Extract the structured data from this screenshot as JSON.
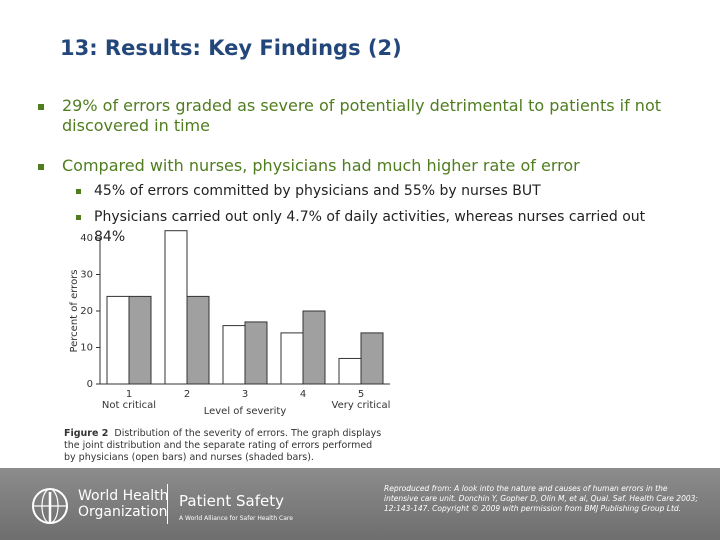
{
  "title": "13: Results: Key Findings (2)",
  "bullets": [
    "29% of errors graded as severe of potentially detrimental to patients if not discovered in time",
    "Compared with nurses, physicians had much higher rate of error"
  ],
  "sub_bullets": [
    "45% of errors committed by physicians and 55% by nurses BUT",
    "Physicians carried out only 4.7% of daily activities, whereas nurses carried out 84%"
  ],
  "figure": {
    "type": "bar",
    "categories": [
      "1",
      "2",
      "3",
      "4",
      "5"
    ],
    "x_end_labels": [
      "Not critical",
      "Very critical"
    ],
    "xlabel": "Level of severity",
    "ylabel": "Percent of errors",
    "ylim": [
      0,
      40
    ],
    "yticks": [
      0,
      10,
      20,
      30,
      40
    ],
    "series": [
      {
        "color": "#ffffff",
        "values": [
          24,
          42,
          16,
          14,
          7
        ]
      },
      {
        "color": "#a0a0a0",
        "values": [
          24,
          24,
          17,
          20,
          14
        ]
      }
    ],
    "caption_label": "Figure 2",
    "caption": "Distribution of the severity of errors. The graph displays the joint distribution and the separate rating of errors performed by physicians (open bars) and nurses (shaded bars)."
  },
  "footer": {
    "org_lines": [
      "World Health",
      "Organization"
    ],
    "program": "Patient Safety",
    "tagline": "A World Alliance for Safer Health Care",
    "credit": "Reproduced from: A look into the nature and causes of human errors in the intensive care unit. Donchin Y, Gopher D, Olin M, et al, Qual. Saf. Health Care 2003; 12:143-147. Copyright © 2009 with permission from BMJ Publishing Group Ltd."
  }
}
